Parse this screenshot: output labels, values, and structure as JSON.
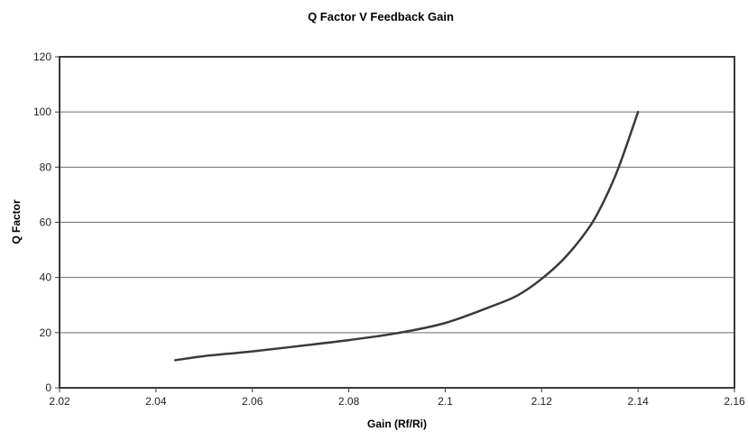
{
  "chart_data": {
    "type": "line",
    "title": "Q Factor V Feedback Gain",
    "xlabel": "Gain (Rf/Ri)",
    "ylabel": "Q Factor",
    "xlim": [
      2.02,
      2.16
    ],
    "ylim": [
      0,
      120
    ],
    "x_ticks": [
      "2.02",
      "2.04",
      "2.06",
      "2.08",
      "2.1",
      "2.12",
      "2.14",
      "2.16"
    ],
    "y_ticks": [
      "0",
      "20",
      "40",
      "60",
      "80",
      "100",
      "120"
    ],
    "grid": "horizontal",
    "legend": "none",
    "colors": {
      "line": "#3a3a3a",
      "grid": "#6d6e71",
      "frame": "#3a3a3a",
      "text": "#231f20"
    },
    "series": [
      {
        "x": [
          2.044,
          2.05,
          2.06,
          2.07,
          2.08,
          2.09,
          2.1,
          2.11,
          2.115,
          2.12,
          2.125,
          2.13,
          2.133,
          2.136,
          2.14
        ],
        "y": [
          10,
          11.5,
          13.2,
          15.2,
          17.3,
          19.8,
          23.5,
          29.8,
          33.5,
          39.5,
          47.5,
          58.5,
          68,
          80,
          100
        ]
      }
    ]
  }
}
